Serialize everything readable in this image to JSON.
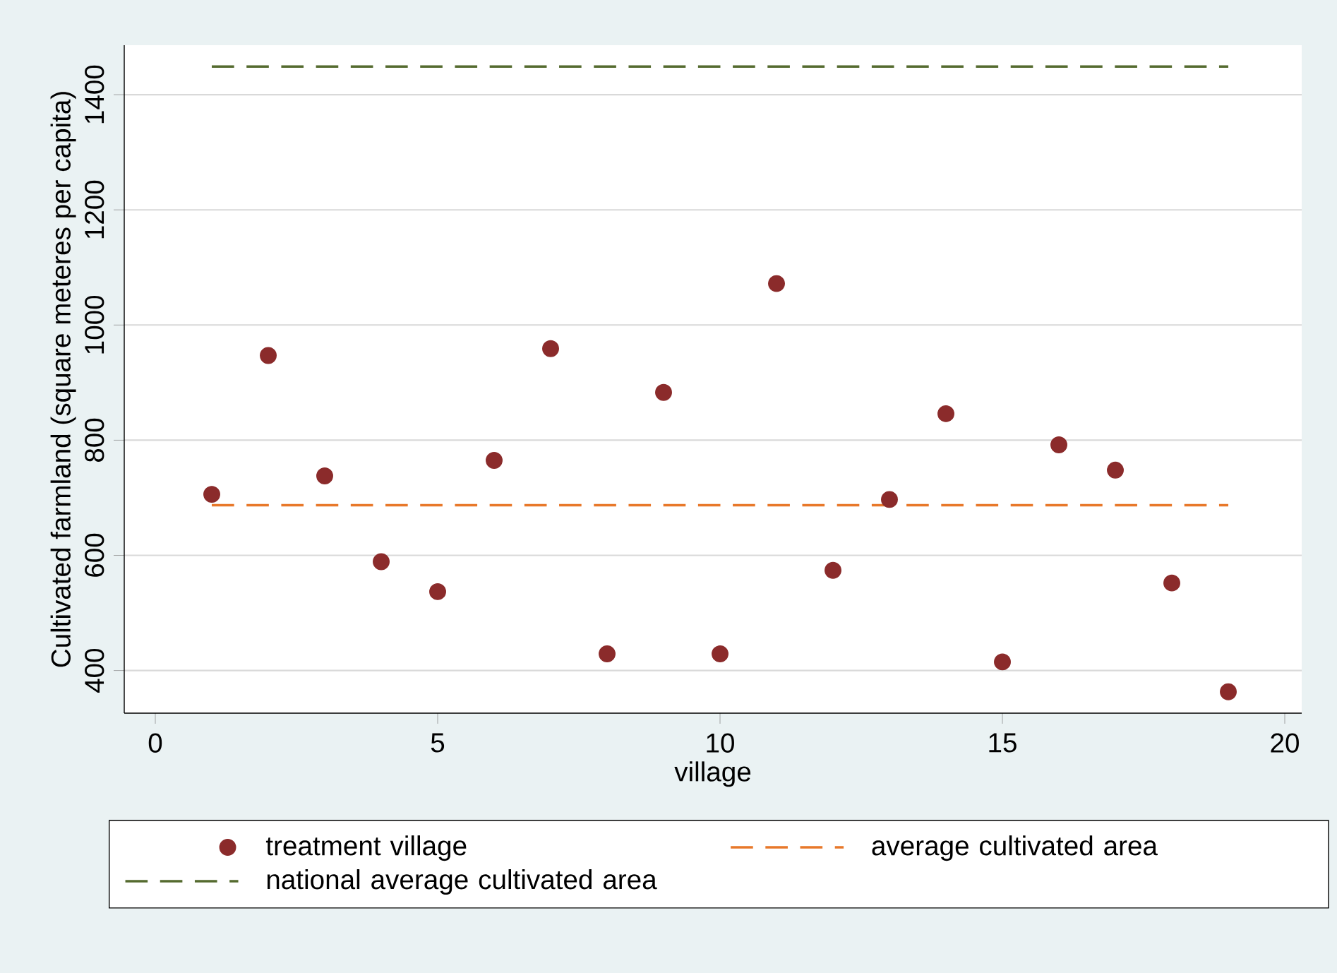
{
  "chart_data": {
    "type": "scatter",
    "xlabel": "village",
    "ylabel": "Cultivated farmland (square meteres per capita)",
    "xlim": [
      -0.55,
      20.3
    ],
    "ylim": [
      326,
      1486
    ],
    "xticks": [
      0,
      5,
      10,
      15,
      20
    ],
    "yticks": [
      400,
      600,
      800,
      1000,
      1200,
      1400
    ],
    "grid": "y",
    "legend": "bottom",
    "marker": "circle",
    "series": [
      {
        "name": "treatment village",
        "color": "#8b2b2b",
        "x": [
          1,
          2,
          3,
          4,
          5,
          6,
          7,
          8,
          9,
          10,
          11,
          12,
          13,
          14,
          15,
          16,
          17,
          18,
          19
        ],
        "values": [
          706,
          947,
          738,
          589,
          537,
          765,
          959,
          429,
          883,
          429,
          1072,
          574,
          697,
          846,
          415,
          792,
          748,
          552,
          363
        ]
      },
      {
        "name": "average cultivated area",
        "type": "line",
        "line_style": "dashed",
        "marker": "none",
        "color": "#e8782a",
        "x": [
          1,
          19
        ],
        "values": [
          687,
          687
        ]
      },
      {
        "name": "national average cultivated area",
        "type": "line",
        "line_style": "dashed",
        "marker": "none",
        "color": "#556b2f",
        "x": [
          1,
          19
        ],
        "values": [
          1449,
          1449
        ]
      }
    ]
  }
}
